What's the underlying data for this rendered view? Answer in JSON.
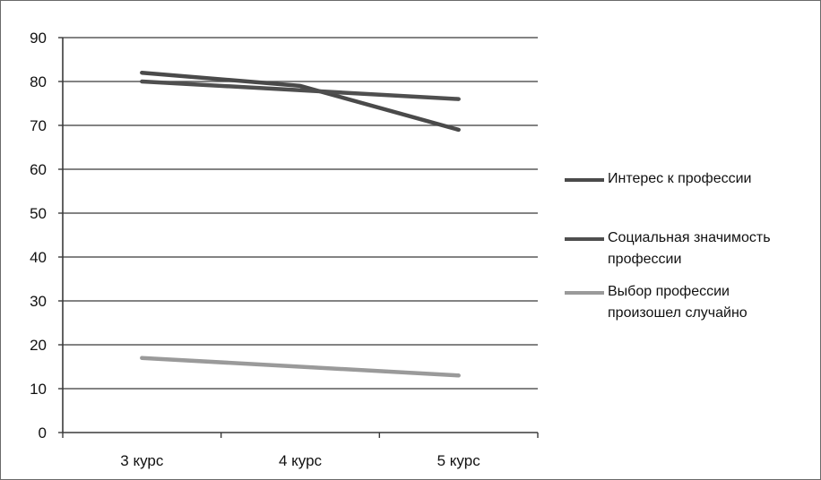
{
  "chart_data": {
    "type": "line",
    "categories": [
      "3 курс",
      "4 курс",
      "5 курс"
    ],
    "ylim": [
      0,
      90
    ],
    "yticks": [
      0,
      10,
      20,
      30,
      40,
      50,
      60,
      70,
      80,
      90
    ],
    "grid": true,
    "legend": "right",
    "series": [
      {
        "name": "Интерес  к профессии",
        "values": [
          82,
          79,
          69
        ],
        "color": "#4a4a4a"
      },
      {
        "name": "Социальная значимость профессии",
        "values": [
          80,
          78,
          76
        ],
        "color": "#4f4f4f"
      },
      {
        "name": "Выбор профессии произошел случайно",
        "values": [
          17,
          15,
          13
        ],
        "color": "#9a9a9a"
      }
    ]
  }
}
